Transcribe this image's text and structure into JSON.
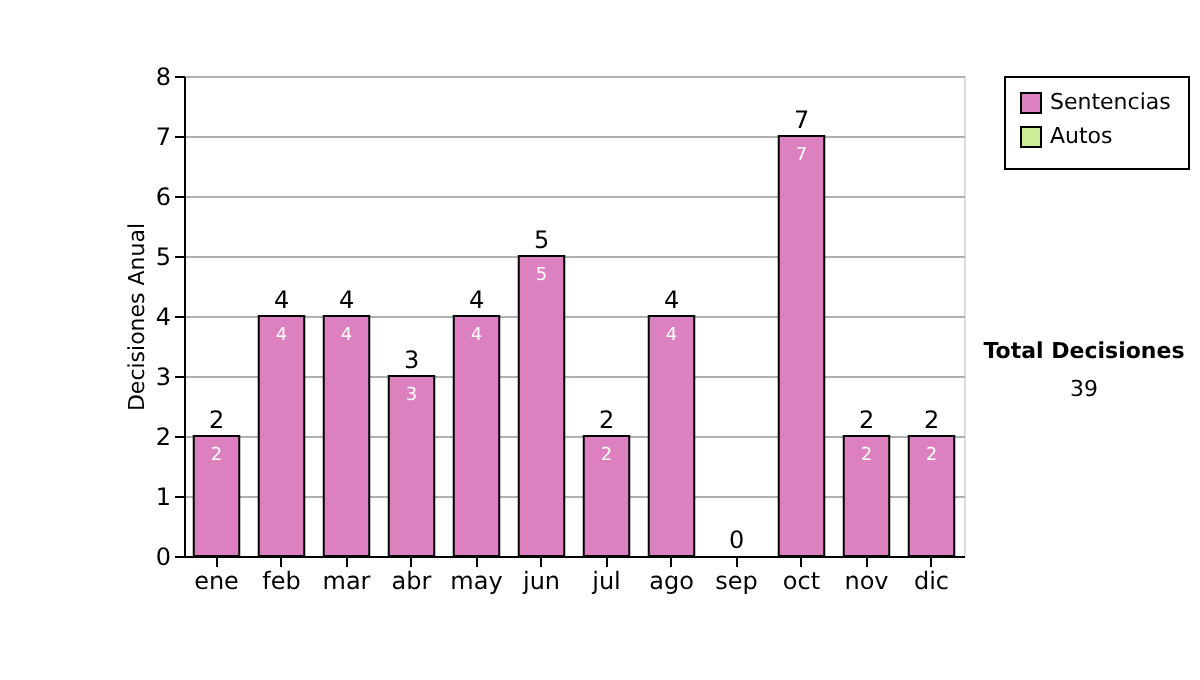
{
  "chart_data": {
    "type": "bar",
    "stacked": true,
    "ylabel": "Decisiones Anual",
    "categories": [
      "ene",
      "feb",
      "mar",
      "abr",
      "may",
      "jun",
      "jul",
      "ago",
      "sep",
      "oct",
      "nov",
      "dic"
    ],
    "series": [
      {
        "name": "Sentencias",
        "color": "#dd80c0",
        "values": [
          2,
          4,
          4,
          3,
          4,
          5,
          2,
          4,
          0,
          7,
          2,
          2
        ],
        "value_labels": [
          "2",
          "4",
          "4",
          "3",
          "4",
          "5",
          "2",
          "4",
          null,
          "7",
          "2",
          "2"
        ]
      },
      {
        "name": "Autos",
        "color": "#ccee99",
        "values": [
          0,
          0,
          0,
          0,
          0,
          0,
          0,
          0,
          0,
          0,
          0,
          0
        ]
      }
    ],
    "totals": [
      "2",
      "4",
      "4",
      "3",
      "4",
      "5",
      "2",
      "4",
      "0",
      "7",
      "2",
      "2"
    ],
    "ylim": [
      0,
      8
    ],
    "yticks": [
      0,
      1,
      2,
      3,
      4,
      5,
      6,
      7,
      8
    ],
    "grid": "y",
    "legend": "right",
    "annotations": [
      "Total Decisiones",
      "39"
    ]
  }
}
